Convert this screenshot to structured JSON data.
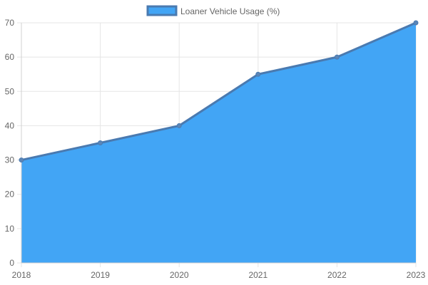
{
  "chart_data": {
    "type": "area",
    "categories": [
      "2018",
      "2019",
      "2020",
      "2021",
      "2022",
      "2023"
    ],
    "series": [
      {
        "name": "Loaner Vehicle Usage (%)",
        "values": [
          30,
          35,
          40,
          55,
          60,
          70
        ]
      }
    ],
    "ylim": [
      0,
      70
    ],
    "yticks": [
      0,
      10,
      20,
      30,
      40,
      50,
      60,
      70
    ],
    "grid": true,
    "legend_position": "top-center",
    "colors": {
      "fill": "#42a5f5",
      "line": "#4a7ab0",
      "point": "#5b86b8"
    }
  }
}
